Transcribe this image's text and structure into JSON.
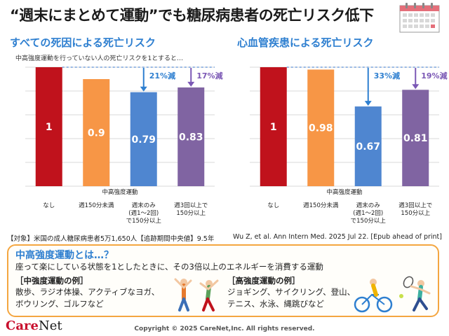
{
  "title": "“週末にまとめて運動”でも糖尿病患者の死亡リスク低下",
  "note": "中高強度運動を行っていない人の死亡リスクを1とすると…",
  "source_left": "【対象】米国の成人糖尿病患者5万1,650人【追跡期間中央値】9.5年",
  "source_right": "Wu Z, et al. Ann Intern Med. 2025 Jul 22. [Epub ahead of print]",
  "info": {
    "title": "中高強度運動とは…？",
    "text": "座って楽にしている状態を1としたときに、その3倍以上のエネルギーを消費する運動",
    "moderate_head": "［中強度運動の例］",
    "moderate_line1": "散歩、ラジオ体操、アクティブなヨガ、",
    "moderate_line2": "ボウリング、ゴルフなど",
    "vigorous_head": "［高強度運動の例］",
    "vigorous_line1": "ジョギング、サイクリング、登山、",
    "vigorous_line2": "テニス、水泳、縄跳びなど"
  },
  "logo": {
    "care": "Care",
    "net": "Net"
  },
  "copyright": "Copyright © 2025 CareNet,Inc. All rights reserved.",
  "colors": {
    "red": "#c0121c",
    "orange": "#f79646",
    "blue": "#4f86d0",
    "purple": "#8064a2",
    "accent_blue": "#2e7fd0",
    "accent_purple": "#7b58b5"
  },
  "chart_data": [
    {
      "type": "bar",
      "title": "すべての死因による死亡リスク",
      "xlabel": "中高強度運動",
      "ylim": [
        0,
        1
      ],
      "categories": [
        [
          "なし"
        ],
        [
          "週150分未満"
        ],
        [
          "週末のみ",
          "(週1～2回)",
          "で150分以上"
        ],
        [
          "週3回以上で",
          "150分以上"
        ]
      ],
      "values": [
        1,
        0.9,
        0.79,
        0.83
      ],
      "value_labels": [
        "1",
        "0.9",
        "0.79",
        "0.83"
      ],
      "reductions": [
        {
          "bar": 2,
          "label": "21%減"
        },
        {
          "bar": 3,
          "label": "17%減"
        }
      ]
    },
    {
      "type": "bar",
      "title": "心血管疾患による死亡リスク",
      "xlabel": "中高強度運動",
      "ylim": [
        0,
        1
      ],
      "categories": [
        [
          "なし"
        ],
        [
          "週150分未満"
        ],
        [
          "週末のみ",
          "(週1～2回)",
          "で150分以上"
        ],
        [
          "週3回以上で",
          "150分以上"
        ]
      ],
      "values": [
        1,
        0.98,
        0.67,
        0.81
      ],
      "value_labels": [
        "1",
        "0.98",
        "0.67",
        "0.81"
      ],
      "reductions": [
        {
          "bar": 2,
          "label": "33%減"
        },
        {
          "bar": 3,
          "label": "19%減"
        }
      ]
    }
  ]
}
